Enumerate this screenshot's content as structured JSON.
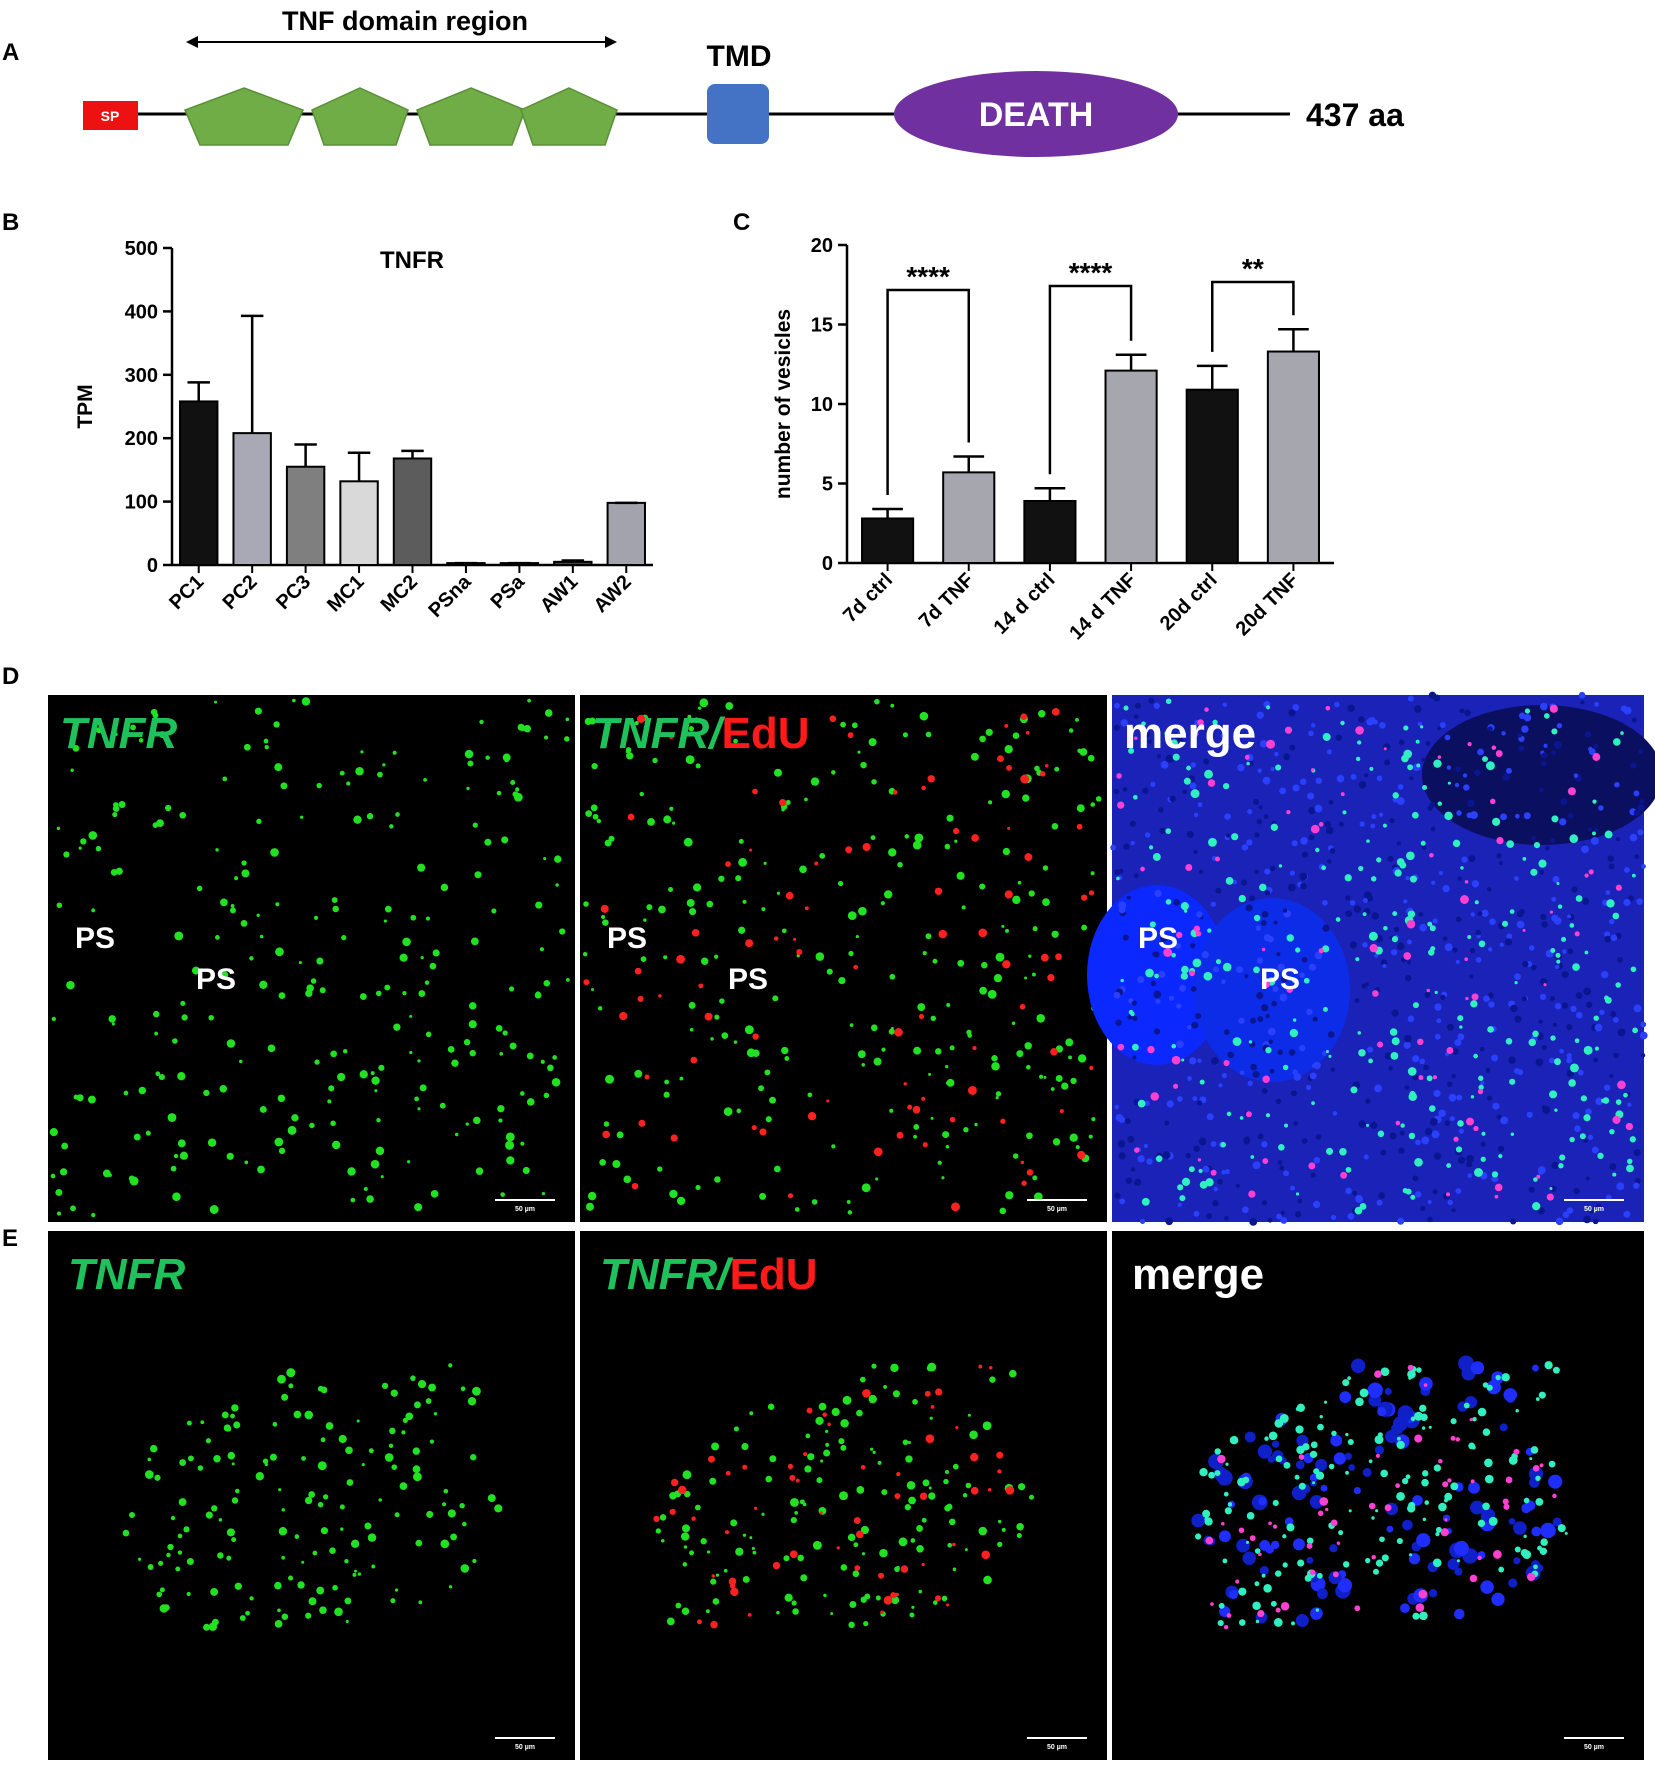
{
  "panel_labels": [
    "A",
    "B",
    "C",
    "D",
    "E"
  ],
  "domain_diagram": {
    "region_label": "TNF domain region",
    "sp": "SP",
    "tmd": "TMD",
    "death": "DEATH",
    "length_label": "437 aa"
  },
  "chart_data": [
    {
      "type": "bar",
      "title": "TNFR",
      "y_label": "TPM",
      "categories": [
        "PC1",
        "PC2",
        "PC3",
        "MC1",
        "MC2",
        "PSna",
        "PSa",
        "AW1",
        "AW2"
      ],
      "values": [
        258,
        208,
        155,
        132,
        168,
        3,
        3,
        5,
        98
      ],
      "errors": [
        30,
        185,
        35,
        45,
        12,
        0,
        0,
        2,
        0
      ],
      "colors": [
        "#111111",
        "#a9a9b5",
        "#7f7f7f",
        "#d9d9d9",
        "#5c5c5c",
        "#444444",
        "#444444",
        "#444444",
        "#a3a3ad"
      ],
      "ylim": [
        0,
        500
      ],
      "yticks": [
        0,
        100,
        200,
        300,
        400,
        500
      ]
    },
    {
      "type": "bar",
      "y_label": "number of vesicles",
      "categories": [
        "7d ctrl",
        "7d TNF",
        "14 d ctrl",
        "14 d TNF",
        "20d ctrl",
        "20d TNF"
      ],
      "values": [
        2.8,
        5.7,
        3.9,
        12.1,
        10.9,
        13.3
      ],
      "errors": [
        0.6,
        1.0,
        0.8,
        1.0,
        1.5,
        1.4
      ],
      "colors": [
        "#111111",
        "#a6a6ae",
        "#111111",
        "#a6a6ae",
        "#111111",
        "#a6a6ae"
      ],
      "annotations": [
        "****",
        "****",
        "**"
      ],
      "ylim": [
        0,
        20
      ],
      "yticks": [
        0,
        5,
        10,
        15,
        20
      ]
    }
  ],
  "microscopy": {
    "tnfr": "TNFR",
    "tnfr_slash": "TNFR/",
    "edu": "EdU",
    "merge": "merge",
    "ps": "PS",
    "scale_label": "50 µm"
  }
}
